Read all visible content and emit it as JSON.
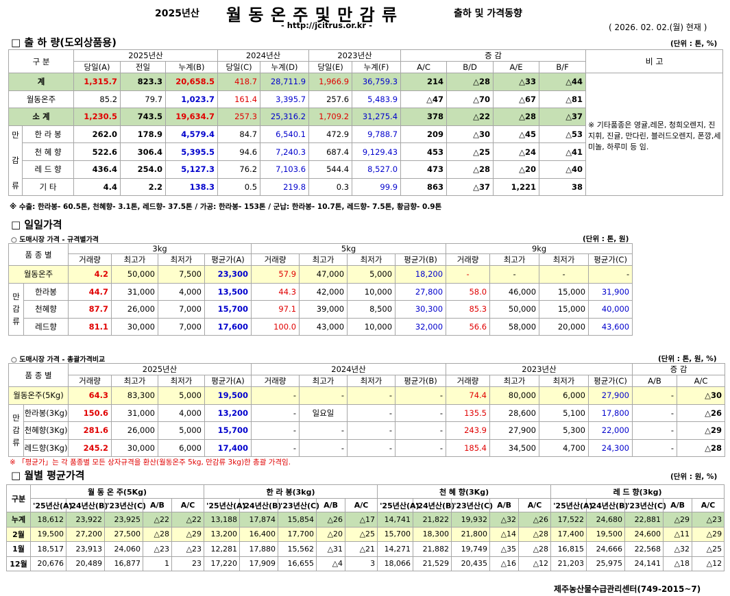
{
  "header": {
    "year": "2025년산",
    "title": "월 동 온 주 및 만 감 류",
    "subtitle": "출하 및 가격동향",
    "url": "- http://jcitrus.or.kr -",
    "date": "( 2026. 02. 02.(월) 현재 )"
  },
  "s1": {
    "title": "□ 출 하 량(도외상품용)",
    "unit": "(단위 : 톤, %)",
    "gubun": "구    분",
    "y2025": "2025년산",
    "y2024": "2024년산",
    "y2023": "2023년산",
    "change": "증     감",
    "bigo": "비 고",
    "cols": [
      "당일(A)",
      "전일",
      "누계(B)",
      "당일(C)",
      "누계(D)",
      "당일(E)",
      "누계(F)",
      "A/C",
      "B/D",
      "A/E",
      "B/F"
    ],
    "mangamryu": [
      "만",
      "감",
      "류"
    ],
    "rows": [
      {
        "label": "계",
        "v": [
          "1,315.7",
          "823.3",
          "20,658.5",
          "418.7",
          "28,711.9",
          "1,966.9",
          "36,759.3",
          "214",
          "△28",
          "△33",
          "△44"
        ]
      },
      {
        "label": "월동온주",
        "v": [
          "85.2",
          "79.7",
          "1,023.7",
          "161.4",
          "3,395.7",
          "257.6",
          "5,483.9",
          "△47",
          "△70",
          "△67",
          "△81"
        ]
      },
      {
        "label": "소    계",
        "v": [
          "1,230.5",
          "743.5",
          "19,634.7",
          "257.3",
          "25,316.2",
          "1,709.2",
          "31,275.4",
          "378",
          "△22",
          "△28",
          "△37"
        ]
      },
      {
        "label": "한 라 봉",
        "v": [
          "262.0",
          "178.9",
          "4,579.4",
          "84.7",
          "6,540.1",
          "472.9",
          "9,788.7",
          "209",
          "△30",
          "△45",
          "△53"
        ]
      },
      {
        "label": "천 혜 향",
        "v": [
          "522.6",
          "306.4",
          "5,395.5",
          "94.6",
          "7,240.3",
          "687.4",
          "9,129.43",
          "453",
          "△25",
          "△24",
          "△41"
        ]
      },
      {
        "label": "레 드 향",
        "v": [
          "436.4",
          "254.0",
          "5,127.3",
          "76.2",
          "7,103.6",
          "544.4",
          "8,527.0",
          "473",
          "△28",
          "△20",
          "△40"
        ]
      },
      {
        "label": "기    타",
        "v": [
          "4.4",
          "2.2",
          "138.3",
          "0.5",
          "219.8",
          "0.3",
          "99.9",
          "863",
          "△37",
          "1,221",
          "38"
        ]
      }
    ],
    "bigo_text": "※ 기타품종은 영귤,레몬, 청희오렌지, 진지휘, 진귤, 만다린, 블러드오렌지, 폰깡,세미놀, 하루미 등 임.",
    "note": "※ 수출: 한라봉- 60.5톤, 천혜향- 3.1톤, 레드향- 37.5톤 / 가공: 한라봉- 153톤 /  군납: 한라봉- 10.7톤, 레드향- 7.5톤, 황금향- 0.9톤"
  },
  "s2": {
    "title": "□ 일일가격",
    "sub": "○ 도매시장 가격 - 규격별가격",
    "unit": "(단위 : 톤, 원)",
    "pumjong": "품 종 별",
    "k3": "3kg",
    "k5": "5kg",
    "k9": "9kg",
    "cols": [
      "거래량",
      "최고가",
      "최저가",
      "평균가(A)",
      "거래량",
      "최고가",
      "최저가",
      "평균가(B)",
      "거래량",
      "최고가",
      "최저가",
      "평균가(C)"
    ],
    "rows": [
      {
        "label": "월동온주",
        "v": [
          "4.2",
          "50,000",
          "7,500",
          "23,300",
          "57.9",
          "47,000",
          "5,000",
          "18,200",
          "-",
          "-",
          "-",
          "-"
        ]
      },
      {
        "label": "한라봉",
        "v": [
          "44.7",
          "31,000",
          "4,000",
          "13,500",
          "44.3",
          "42,000",
          "10,000",
          "27,800",
          "58.0",
          "46,000",
          "15,000",
          "31,900"
        ]
      },
      {
        "label": "천혜향",
        "v": [
          "87.7",
          "26,000",
          "7,000",
          "15,700",
          "97.1",
          "39,000",
          "8,500",
          "30,300",
          "85.3",
          "50,000",
          "15,000",
          "40,000"
        ]
      },
      {
        "label": "레드향",
        "v": [
          "81.1",
          "30,000",
          "7,000",
          "17,600",
          "100.0",
          "43,000",
          "10,000",
          "32,000",
          "56.6",
          "58,000",
          "20,000",
          "43,600"
        ]
      }
    ]
  },
  "s3": {
    "sub": "○ 도매시장 가격 - 총괄가격비교",
    "unit": "(단위 : 톤, 원, %)",
    "pumjong": "품 종 별",
    "y2025": "2025년산",
    "y2024": "2024년산",
    "y2023": "2023년산",
    "change": "증   감",
    "cols": [
      "거래량",
      "최고가",
      "최저가",
      "평균가(A)",
      "거래량",
      "최고가",
      "최저가",
      "평균가(B)",
      "거래량",
      "최고가",
      "최저가",
      "평균가(C)",
      "A/B",
      "A/C"
    ],
    "rows": [
      {
        "label": "월동온주(5Kg)",
        "v": [
          "64.3",
          "83,300",
          "5,000",
          "19,500",
          "-",
          "-",
          "-",
          "-",
          "74.4",
          "80,000",
          "6,000",
          "27,900",
          "-",
          "△30"
        ]
      },
      {
        "label": "한라봉(3Kg)",
        "v": [
          "150.6",
          "31,000",
          "4,000",
          "13,200",
          "-",
          "일요일",
          "-",
          "-",
          "135.5",
          "28,600",
          "5,100",
          "17,800",
          "-",
          "△26"
        ]
      },
      {
        "label": "천혜향(3Kg)",
        "v": [
          "281.6",
          "26,000",
          "5,000",
          "15,700",
          "-",
          "-",
          "-",
          "-",
          "243.9",
          "27,900",
          "5,300",
          "22,000",
          "-",
          "△29"
        ]
      },
      {
        "label": "레드향(3Kg)",
        "v": [
          "245.2",
          "30,000",
          "6,000",
          "17,400",
          "-",
          "-",
          "-",
          "-",
          "185.4",
          "34,500",
          "4,700",
          "24,300",
          "-",
          "△28"
        ]
      }
    ],
    "note": "※ 「평균가」는 각 품종별 모든 상자규격을 환산(월동온주 5kg, 만감류 3kg)한 총괄 가격임."
  },
  "s4": {
    "title": "□ 월별 평균가격",
    "unit": "(단위 : 원, %)",
    "gubun": "구분",
    "groups": [
      "월 동 온 주(5Kg)",
      "한 라 봉(3kg)",
      "천 혜 향(3Kg)",
      "레 드 향(3kg)"
    ],
    "cols": [
      "'25년산(A)",
      "'24년산(B)",
      "'23년산(C)",
      "A/B",
      "A/C"
    ],
    "rows": [
      {
        "label": "누계",
        "v": [
          "18,612",
          "23,922",
          "23,925",
          "△22",
          "△22",
          "13,188",
          "17,874",
          "15,854",
          "△26",
          "△17",
          "14,741",
          "21,822",
          "19,932",
          "△32",
          "△26",
          "17,522",
          "24,680",
          "22,881",
          "△29",
          "△23"
        ]
      },
      {
        "label": "2월",
        "v": [
          "19,500",
          "27,200",
          "27,500",
          "△28",
          "△29",
          "13,200",
          "16,400",
          "17,700",
          "△20",
          "△25",
          "15,700",
          "18,300",
          "21,800",
          "△14",
          "△28",
          "17,400",
          "19,500",
          "24,600",
          "△11",
          "△29"
        ]
      },
      {
        "label": "1월",
        "v": [
          "18,517",
          "23,913",
          "24,060",
          "△23",
          "△23",
          "12,281",
          "17,880",
          "15,562",
          "△31",
          "△21",
          "14,271",
          "21,882",
          "19,749",
          "△35",
          "△28",
          "16,815",
          "24,666",
          "22,568",
          "△32",
          "△25"
        ]
      },
      {
        "label": "12월",
        "v": [
          "20,676",
          "20,489",
          "16,877",
          "1",
          "23",
          "17,220",
          "17,909",
          "16,655",
          "△4",
          "3",
          "18,066",
          "21,529",
          "20,435",
          "△16",
          "△12",
          "21,203",
          "25,975",
          "24,141",
          "△18",
          "△12"
        ]
      }
    ]
  },
  "footer": "제주농산물수급관리센터(749-2015~7)"
}
